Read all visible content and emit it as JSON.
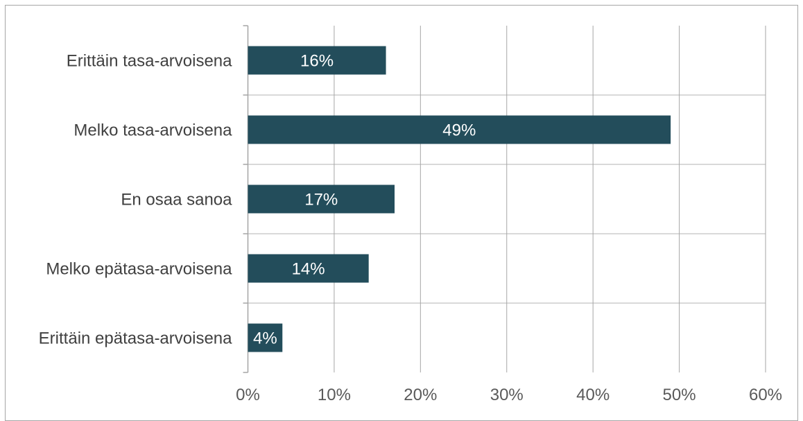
{
  "chart_data": {
    "type": "bar",
    "orientation": "horizontal",
    "categories": [
      "Erittäin tasa-arvoisena",
      "Melko tasa-arvoisena",
      "En osaa sanoa",
      "Melko epätasa-arvoisena",
      "Erittäin epätasa-arvoisena"
    ],
    "values": [
      16,
      49,
      17,
      14,
      4
    ],
    "data_labels": [
      "16%",
      "49%",
      "17%",
      "14%",
      "4%"
    ],
    "x_ticks": [
      0,
      10,
      20,
      30,
      40,
      50,
      60
    ],
    "x_tick_labels": [
      "0%",
      "10%",
      "20%",
      "30%",
      "40%",
      "50%",
      "60%"
    ],
    "xlim": [
      0,
      60
    ],
    "grid": true,
    "colors": {
      "bar": "#234d5b",
      "gridline": "#a6a6a6",
      "separator": "#d9d9d9",
      "frame": "#a6a6a6"
    }
  }
}
